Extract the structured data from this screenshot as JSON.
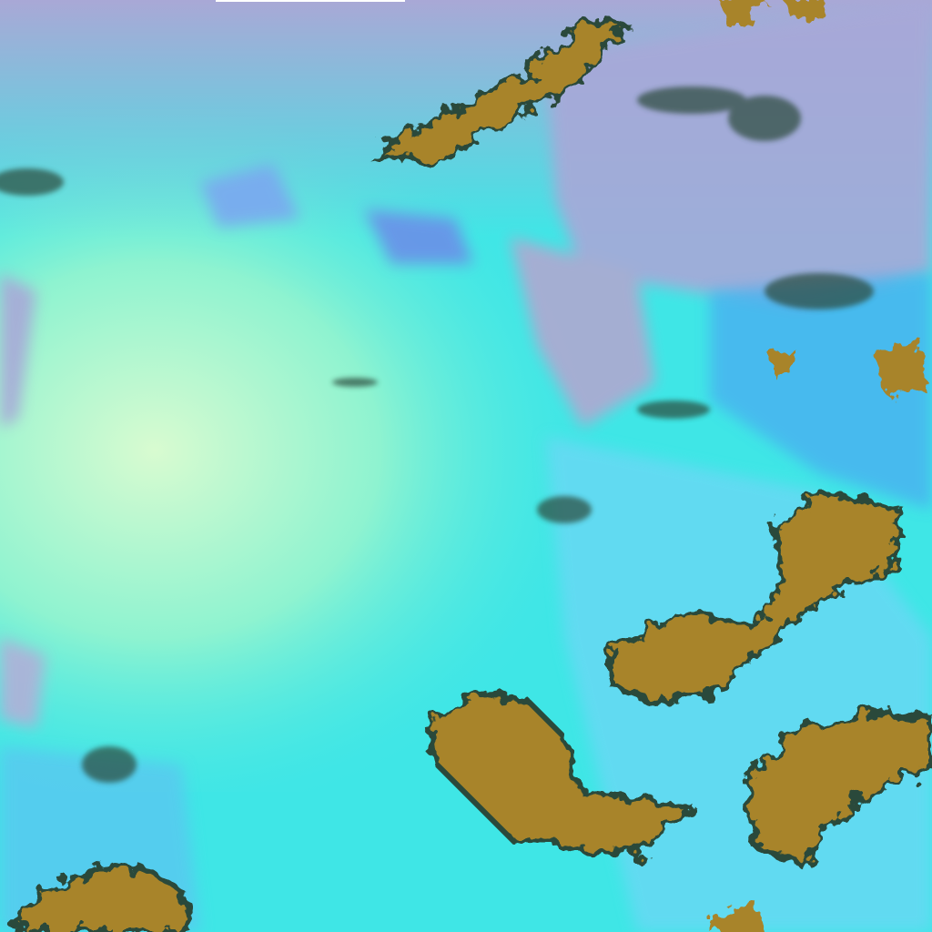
{
  "image": {
    "type": "false-color satellite imagery",
    "colors": {
      "cloud_cyan": "#3fe6e6",
      "cloud_pale": "#b8f5d8",
      "haze_lavender": "#a8a8d8",
      "land_ochre": "#a8842a",
      "land_shadow": "#2a4a3a",
      "blue_cloud": "#4ab0f0",
      "edge_strip": "#ffffff"
    }
  }
}
